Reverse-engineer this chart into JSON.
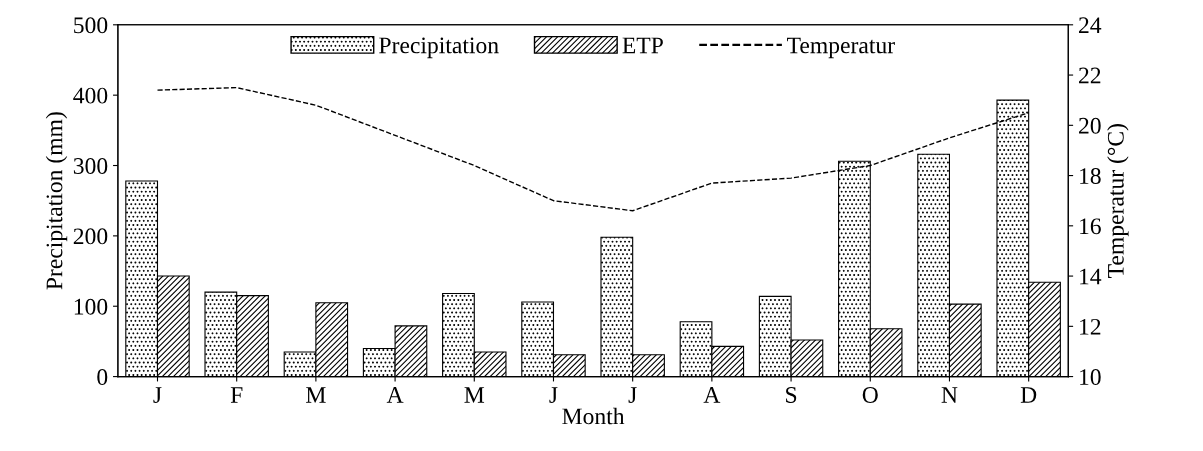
{
  "chart_data": {
    "type": "bar",
    "xlabel": "Month",
    "ylabel": "Precipitation (mm)",
    "y2label": "Temperatur (°C)",
    "categories": [
      "J",
      "F",
      "M",
      "A",
      "M",
      "J",
      "J",
      "A",
      "S",
      "O",
      "N",
      "D"
    ],
    "series": [
      {
        "name": "Precipitation",
        "color": "#000000",
        "values": [
          278,
          120,
          35,
          40,
          118,
          106,
          198,
          78,
          114,
          306,
          316,
          393
        ]
      },
      {
        "name": "ETP",
        "color": "#000000",
        "values": [
          143,
          115,
          105,
          72,
          35,
          31,
          31,
          43,
          52,
          68,
          103,
          134
        ]
      },
      {
        "name": "Temperatur",
        "type": "line",
        "axis": "y2",
        "color": "#000000",
        "line_style": "dashed",
        "values": [
          21.4,
          21.5,
          20.8,
          19.6,
          18.4,
          17.0,
          16.6,
          17.7,
          17.9,
          18.4,
          19.5,
          20.5
        ]
      }
    ],
    "ylim": [
      0,
      500
    ],
    "yticks": [
      0,
      100,
      200,
      300,
      400,
      500
    ],
    "y2lim": [
      10,
      24
    ],
    "y2ticks": [
      10,
      12,
      14,
      16,
      18,
      20,
      22,
      24
    ],
    "legend": "top",
    "grid": false
  }
}
